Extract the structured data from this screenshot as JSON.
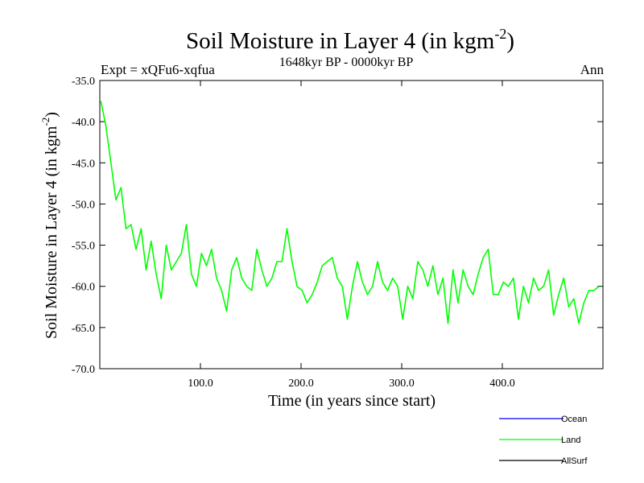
{
  "chart_data": {
    "type": "line",
    "title_main": "Soil Moisture in Layer 4 (in kgm",
    "title_sup": "-2",
    "title_close": ")",
    "subtitle_left": "Expt = xQFu6-xqfua",
    "subtitle_center": "1648kyr BP - 0000kyr BP",
    "subtitle_right": "Ann",
    "xlabel": "Time (in years since start)",
    "ylabel_main": "Soil Moisture in Layer 4 (in kgm",
    "ylabel_sup": "-2",
    "ylabel_close": ")",
    "xlim": [
      0,
      500
    ],
    "ylim": [
      -70,
      -35
    ],
    "x_ticks": [
      100,
      200,
      300,
      400
    ],
    "x_tick_labels": [
      "100.0",
      "200.0",
      "300.0",
      "400.0"
    ],
    "y_ticks": [
      -35,
      -40,
      -45,
      -50,
      -55,
      -60,
      -65,
      -70
    ],
    "y_tick_labels": [
      "-35.0",
      "-40.0",
      "-45.0",
      "-50.0",
      "-55.0",
      "-60.0",
      "-65.0",
      "-70.0"
    ],
    "legend": [
      {
        "name": "Ocean",
        "color": "#0000ff"
      },
      {
        "name": "Land",
        "color": "#00ff00"
      },
      {
        "name": "AllSurf",
        "color": "#000000"
      }
    ],
    "series": [
      {
        "name": "Land",
        "color": "#00ff00",
        "x_start": 1,
        "x_step": 5,
        "values": [
          -37.5,
          -40.5,
          -45.0,
          -49.5,
          -48.0,
          -53.0,
          -52.5,
          -55.5,
          -53.0,
          -58.0,
          -54.5,
          -58.5,
          -61.5,
          -55.0,
          -58.0,
          -57.0,
          -56.0,
          -52.5,
          -58.5,
          -60.0,
          -56.0,
          -57.5,
          -55.5,
          -59.0,
          -60.5,
          -63.0,
          -58.0,
          -56.5,
          -59.0,
          -60.0,
          -60.5,
          -55.5,
          -58.0,
          -60.0,
          -59.0,
          -57.0,
          -57.0,
          -53.0,
          -57.0,
          -60.0,
          -60.5,
          -62.0,
          -61.0,
          -59.5,
          -57.5,
          -57.0,
          -56.5,
          -59.0,
          -60.0,
          -64.0,
          -60.0,
          -57.0,
          -59.5,
          -61.0,
          -60.0,
          -57.0,
          -59.5,
          -60.5,
          -59.0,
          -60.0,
          -64.0,
          -60.0,
          -61.5,
          -57.0,
          -58.0,
          -60.0,
          -57.5,
          -61.0,
          -59.0,
          -64.5,
          -58.0,
          -62.0,
          -58.0,
          -60.0,
          -61.0,
          -58.5,
          -56.5,
          -55.5,
          -61.0,
          -61.0,
          -59.5,
          -60.0,
          -59.0,
          -64.0,
          -60.0,
          -62.0,
          -59.0,
          -60.5,
          -60.0,
          -58.0,
          -63.5,
          -61.0,
          -59.0,
          -62.5,
          -61.5,
          -64.5,
          -62.0,
          -60.5,
          -60.5,
          -60.0
        ]
      }
    ]
  }
}
